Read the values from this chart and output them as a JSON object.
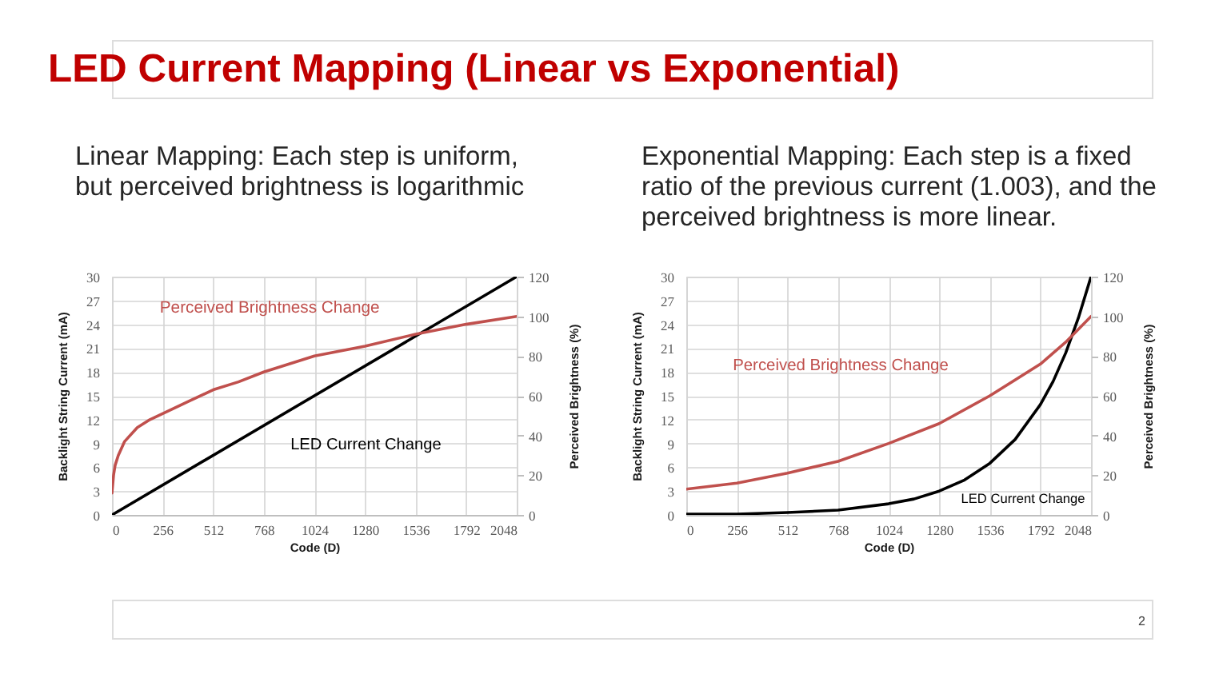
{
  "chart_data": [
    {
      "type": "other",
      "title": "LED Current Mapping (Linear vs Exponential)",
      "annotations": [
        "2"
      ]
    },
    {
      "type": "line",
      "title": "Linear Mapping: Each step is uniform,\nbut perceived brightness is logarithmic",
      "xlabel": "Code (D)",
      "ylabel": "Backlight String Current (mA)",
      "y2label": "Perceived Brightness (%)",
      "xlim": [
        0,
        2048
      ],
      "xticks": [
        0,
        256,
        512,
        768,
        1024,
        1280,
        1536,
        1792,
        2048
      ],
      "ylim": [
        0,
        30
      ],
      "yticks": [
        0,
        3,
        6,
        9,
        12,
        15,
        18,
        21,
        24,
        27,
        30
      ],
      "y2lim": [
        0,
        120
      ],
      "y2ticks": [
        0,
        20,
        40,
        60,
        80,
        100,
        120
      ],
      "grid": true,
      "series": [
        {
          "name": "LED Current Change",
          "color": "#000000",
          "x": [
            0,
            2048
          ],
          "values": [
            0,
            30
          ]
        },
        {
          "name": "Perceived Brightness Change",
          "color": "#c0504d",
          "axis": "y2",
          "x": [
            0,
            8,
            16,
            32,
            64,
            128,
            192,
            256,
            384,
            512,
            640,
            768,
            896,
            1024,
            1280,
            1536,
            1792,
            2048
          ],
          "values": [
            11,
            20,
            25,
            30,
            37,
            44,
            48,
            51,
            57,
            63,
            67,
            72,
            76,
            80,
            85,
            91,
            96,
            100
          ]
        }
      ]
    },
    {
      "type": "line",
      "title": "Exponential Mapping: Each step is a fixed\nratio of the previous current (1.003), and the\nperceived brightness is more linear.",
      "xlabel": "Code (D)",
      "ylabel": "Backlight String Current (mA)",
      "y2label": "Perceived Brightness (%)",
      "xlim": [
        0,
        2048
      ],
      "xticks": [
        0,
        256,
        512,
        768,
        1024,
        1280,
        1536,
        1792,
        2048
      ],
      "ylim": [
        0,
        30
      ],
      "yticks": [
        0,
        3,
        6,
        9,
        12,
        15,
        18,
        21,
        24,
        27,
        30
      ],
      "y2lim": [
        0,
        120
      ],
      "y2ticks": [
        0,
        20,
        40,
        60,
        80,
        100,
        120
      ],
      "grid": true,
      "series": [
        {
          "name": "LED Current Change",
          "color": "#000000",
          "x": [
            0,
            256,
            512,
            768,
            1024,
            1152,
            1280,
            1408,
            1536,
            1664,
            1792,
            1856,
            1920,
            1984,
            2048
          ],
          "values": [
            0.1,
            0.1,
            0.3,
            0.6,
            1.4,
            2,
            3,
            4.4,
            6.5,
            9.5,
            13.9,
            16.8,
            20.4,
            24.8,
            30
          ]
        },
        {
          "name": "Perceived Brightness Change",
          "color": "#c0504d",
          "axis": "y2",
          "x": [
            0,
            256,
            512,
            768,
            1024,
            1280,
            1536,
            1792,
            1920,
            2048
          ],
          "values": [
            13,
            16,
            21,
            27,
            36,
            46,
            60,
            76,
            87,
            100
          ]
        }
      ]
    }
  ]
}
